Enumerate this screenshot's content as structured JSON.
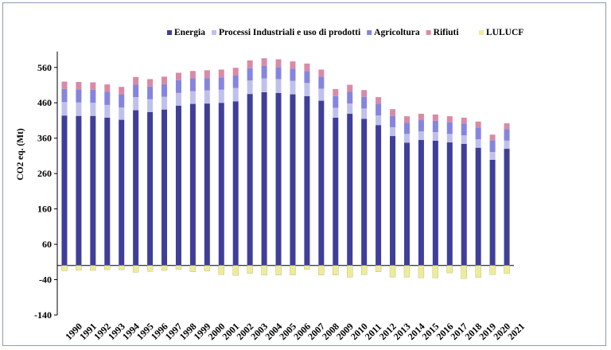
{
  "chart_data": {
    "type": "bar",
    "stacked": true,
    "title": "",
    "xlabel": "",
    "ylabel": "CO2 eq. (Mt)",
    "ylim": [
      -140,
      600
    ],
    "yticks": [
      560,
      460,
      360,
      260,
      160,
      60,
      -40,
      -140
    ],
    "legend_position": "top",
    "categories": [
      "1990",
      "1991",
      "1992",
      "1993",
      "1994",
      "1995",
      "1996",
      "1997",
      "1998",
      "1999",
      "2000",
      "2001",
      "2002",
      "2003",
      "2004",
      "2005",
      "2006",
      "2007",
      "2008",
      "2009",
      "2010",
      "2011",
      "2012",
      "2013",
      "2014",
      "2015",
      "2016",
      "2017",
      "2018",
      "2019",
      "2020",
      "2021"
    ],
    "series": [
      {
        "name": "Energia",
        "color": "#3f3f99",
        "values": [
          424,
          423,
          423,
          418,
          412,
          439,
          434,
          441,
          452,
          457,
          458,
          460,
          464,
          485,
          490,
          488,
          484,
          479,
          466,
          418,
          429,
          415,
          397,
          366,
          347,
          355,
          353,
          348,
          344,
          333,
          299,
          330
        ]
      },
      {
        "name": "Processi Industriali e uso di prodotti",
        "color": "#c0c0ec",
        "values": [
          38,
          38,
          37,
          36,
          35,
          37,
          36,
          36,
          36,
          36,
          37,
          37,
          38,
          38,
          39,
          39,
          38,
          37,
          34,
          28,
          29,
          29,
          27,
          25,
          25,
          24,
          24,
          24,
          24,
          24,
          22,
          23
        ]
      },
      {
        "name": "Agricoltura",
        "color": "#8585e0",
        "values": [
          37,
          37,
          37,
          37,
          37,
          36,
          36,
          36,
          36,
          36,
          35,
          35,
          35,
          35,
          35,
          34,
          34,
          34,
          34,
          33,
          33,
          33,
          33,
          32,
          32,
          32,
          32,
          33,
          33,
          33,
          33,
          33
        ]
      },
      {
        "name": "Rifiuti",
        "color": "#d98aa6",
        "values": [
          21,
          21,
          21,
          21,
          21,
          21,
          21,
          21,
          21,
          21,
          22,
          22,
          22,
          22,
          22,
          22,
          21,
          21,
          20,
          20,
          20,
          19,
          19,
          19,
          18,
          18,
          18,
          17,
          17,
          17,
          16,
          16
        ]
      },
      {
        "name": "LULUCF",
        "color": "#ecec9c",
        "values": [
          -15,
          -13,
          -14,
          -12,
          -12,
          -19,
          -17,
          -14,
          -11,
          -18,
          -16,
          -26,
          -28,
          -22,
          -27,
          -27,
          -27,
          -11,
          -27,
          -27,
          -33,
          -26,
          -18,
          -33,
          -33,
          -35,
          -35,
          -21,
          -37,
          -34,
          -26,
          -23
        ]
      }
    ]
  }
}
